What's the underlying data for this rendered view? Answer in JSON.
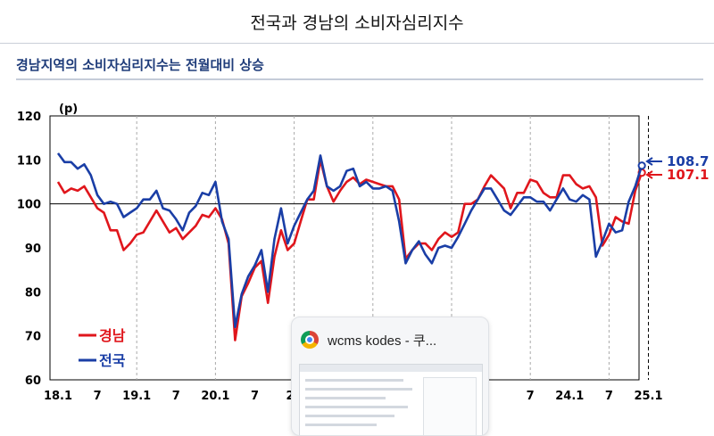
{
  "header": {
    "title": "전국과 경남의 소비자심리지수",
    "subtitle": "경남지역의 소비자심리지수는 전월대비 상승"
  },
  "chart_data": {
    "type": "line",
    "ylabel": "(p)",
    "ylim": [
      60,
      120
    ],
    "yticks": [
      60,
      70,
      80,
      90,
      100,
      110,
      120
    ],
    "reference_line": 100,
    "x_tick_labels": [
      "18.1",
      "7",
      "19.1",
      "7",
      "20.1",
      "7",
      "21",
      "7",
      "24.1",
      "7",
      "25.1"
    ],
    "x_tick_months": [
      0,
      6,
      12,
      18,
      24,
      30,
      36,
      72,
      78,
      84,
      90
    ],
    "dashed_gridlines_months": [
      12,
      24,
      36,
      48,
      60,
      72,
      84
    ],
    "current_divider_month": 90,
    "series": [
      {
        "name": "경남",
        "color": "#e0161c",
        "values": [
          105.0,
          102.5,
          103.5,
          103.0,
          104.0,
          101.5,
          99.0,
          98.0,
          94.0,
          94.0,
          89.5,
          91.0,
          93.0,
          93.5,
          96.0,
          98.5,
          96.0,
          93.5,
          94.5,
          92.0,
          93.5,
          95.0,
          97.5,
          97.0,
          99.0,
          96.5,
          91.0,
          69.0,
          79.0,
          82.0,
          85.5,
          87.0,
          77.5,
          88.0,
          94.0,
          89.5,
          91.0,
          96.0,
          101.0,
          101.0,
          110.0,
          104.0,
          100.5,
          103.0,
          105.0,
          106.0,
          104.5,
          105.5,
          105.0,
          104.5,
          104.0,
          104.0,
          101.0,
          87.5,
          89.5,
          91.0,
          91.0,
          89.5,
          92.0,
          93.5,
          92.5,
          93.5,
          100.0,
          100.0,
          101.0,
          104.0,
          106.5,
          105.0,
          103.5,
          99.0,
          102.5,
          102.5,
          105.5,
          105.0,
          102.5,
          101.5,
          101.5,
          106.5,
          106.5,
          104.5,
          103.5,
          104.0,
          101.5,
          90.5,
          93.0,
          97.0,
          96.0,
          95.5,
          103.0,
          107.1
        ],
        "last_value_label": "107.1"
      },
      {
        "name": "전국",
        "color": "#1a3ea6",
        "values": [
          111.5,
          109.5,
          109.5,
          108.0,
          109.0,
          106.5,
          102.0,
          100.0,
          100.5,
          100.0,
          97.0,
          98.0,
          99.0,
          101.0,
          101.0,
          103.0,
          99.0,
          98.5,
          96.5,
          94.0,
          98.0,
          99.5,
          102.5,
          102.0,
          105.0,
          96.0,
          92.0,
          72.0,
          79.5,
          83.5,
          86.0,
          89.5,
          80.0,
          92.0,
          99.0,
          91.0,
          95.0,
          98.0,
          101.0,
          103.0,
          111.0,
          104.0,
          103.0,
          104.0,
          107.5,
          108.0,
          104.0,
          105.0,
          103.5,
          103.5,
          104.0,
          103.0,
          96.0,
          86.5,
          89.5,
          91.5,
          88.5,
          86.5,
          90.0,
          90.5,
          90.0,
          92.5,
          95.5,
          98.5,
          101.0,
          103.5,
          103.5,
          101.0,
          98.5,
          97.5,
          99.5,
          101.5,
          101.5,
          100.5,
          100.5,
          98.5,
          101.0,
          103.5,
          101.0,
          100.5,
          102.0,
          101.0,
          88.0,
          91.5,
          95.5,
          93.5,
          94.0,
          100.5,
          104.0,
          108.7
        ],
        "last_value_label": "108.7"
      }
    ],
    "legend_position": "bottom-left"
  },
  "tooltip": {
    "text": "wcms kodes - 쿠..."
  }
}
